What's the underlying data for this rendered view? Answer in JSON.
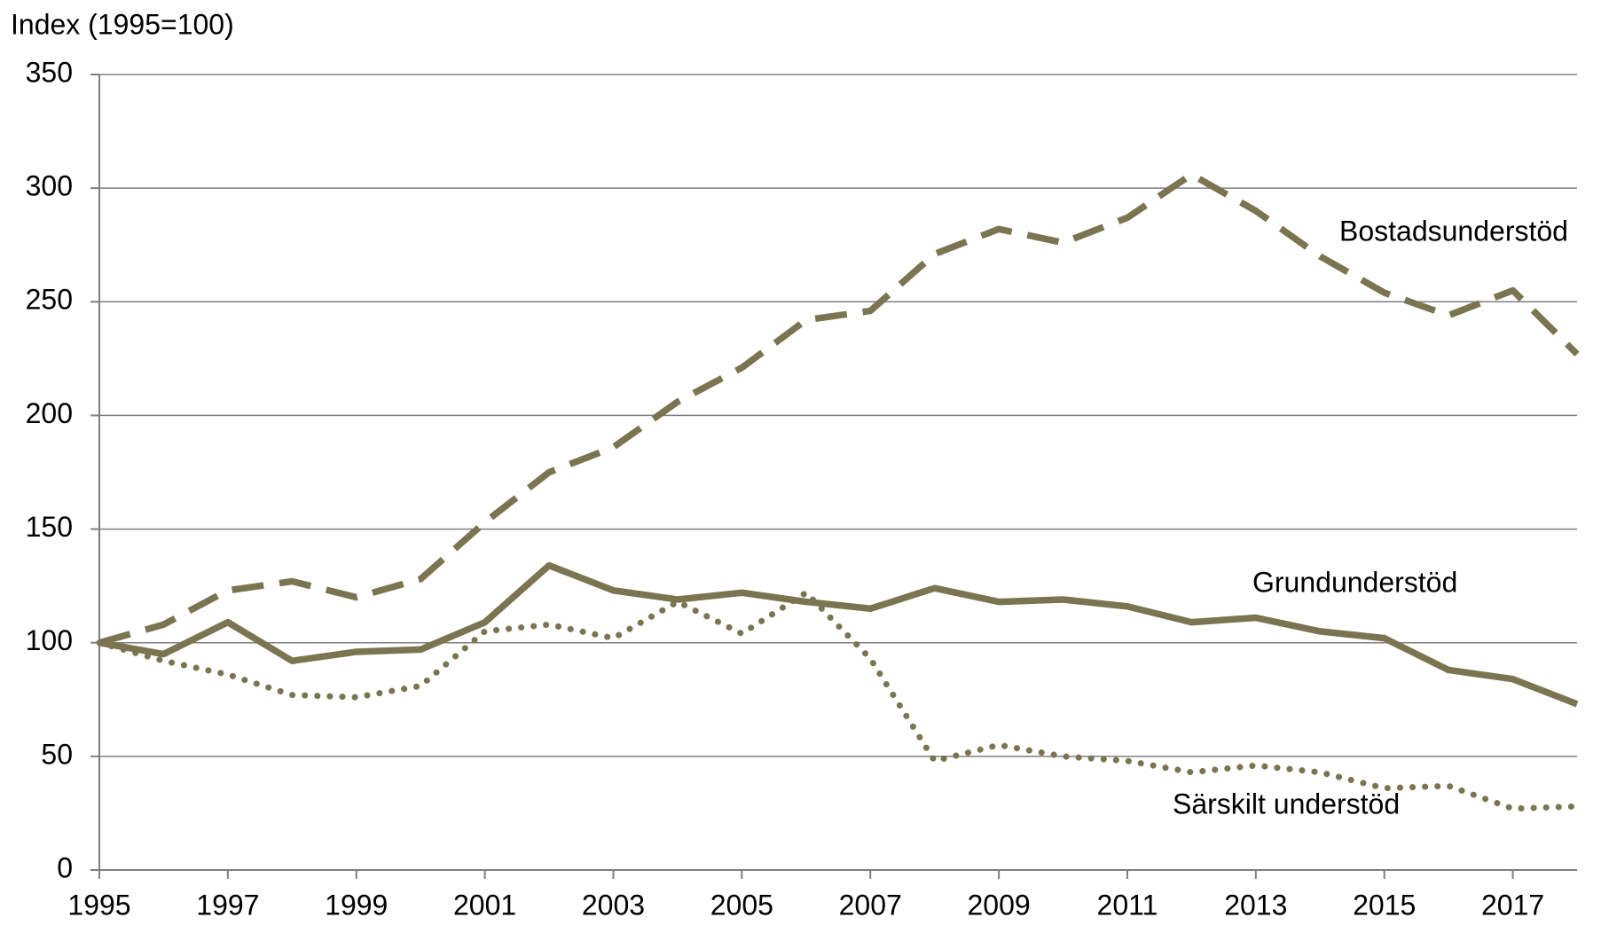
{
  "chart_data": {
    "type": "line",
    "ylabel": "Index (1995=100)",
    "x": [
      1995,
      1996,
      1997,
      1998,
      1999,
      2000,
      2001,
      2002,
      2003,
      2004,
      2005,
      2006,
      2007,
      2008,
      2009,
      2010,
      2011,
      2012,
      2013,
      2014,
      2015,
      2016,
      2017,
      2018
    ],
    "xlim": [
      1995,
      2018
    ],
    "xticks": [
      1995,
      1997,
      1999,
      2001,
      2003,
      2005,
      2007,
      2009,
      2011,
      2013,
      2015,
      2017
    ],
    "ylim": [
      0,
      350
    ],
    "yticks": [
      0,
      50,
      100,
      150,
      200,
      250,
      300,
      350
    ],
    "grid": true,
    "series": [
      {
        "name": "Bostadsunderstöd",
        "color": "#7b7451",
        "style": "dashed",
        "values": [
          100,
          108,
          123,
          127,
          120,
          128,
          153,
          175,
          186,
          206,
          221,
          242,
          246,
          271,
          282,
          276,
          287,
          306,
          290,
          270,
          254,
          244,
          255,
          227
        ]
      },
      {
        "name": "Grundunderstöd",
        "color": "#7b7451",
        "style": "solid",
        "values": [
          100,
          95,
          109,
          92,
          96,
          97,
          109,
          134,
          123,
          119,
          122,
          118,
          115,
          124,
          118,
          119,
          116,
          109,
          111,
          105,
          102,
          88,
          84,
          73
        ]
      },
      {
        "name": "Särskilt understöd",
        "color": "#7b7451",
        "style": "dotted",
        "values": [
          100,
          92,
          86,
          77,
          76,
          81,
          105,
          108,
          102,
          118,
          104,
          122,
          93,
          48,
          55,
          50,
          48,
          43,
          46,
          43,
          36,
          37,
          27,
          28
        ]
      }
    ]
  }
}
